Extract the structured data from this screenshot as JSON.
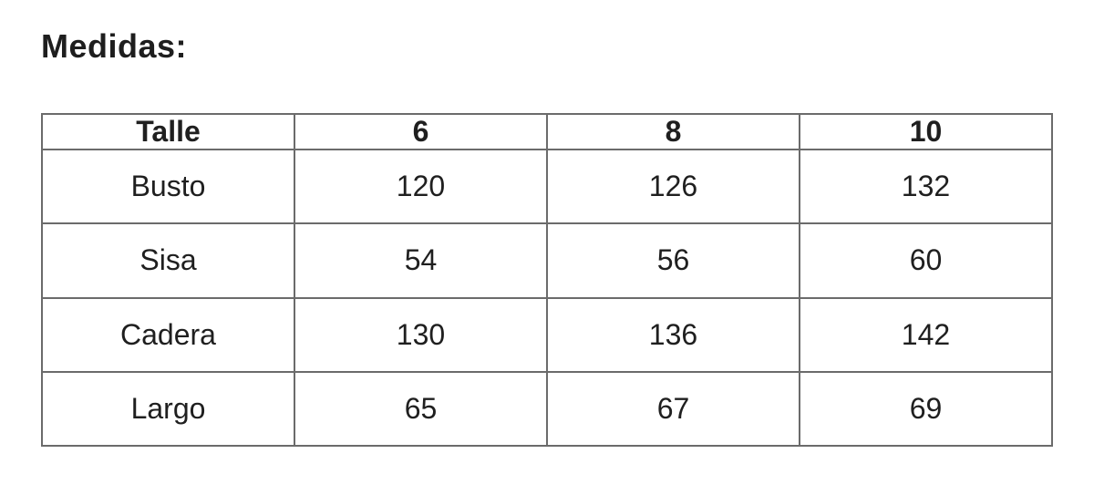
{
  "title": "Medidas:",
  "table": {
    "headers": [
      "Talle",
      "6",
      "8",
      "10"
    ],
    "rows": [
      {
        "label": "Busto",
        "values": [
          "120",
          "126",
          "132"
        ]
      },
      {
        "label": "Sisa",
        "values": [
          "54",
          "56",
          "60"
        ]
      },
      {
        "label": "Cadera",
        "values": [
          "130",
          "136",
          "142"
        ]
      },
      {
        "label": "Largo",
        "values": [
          "65",
          "67",
          "69"
        ]
      }
    ]
  },
  "colors": {
    "text": "#1f1f1f",
    "border": "#6b6b6b",
    "background": "#ffffff"
  }
}
